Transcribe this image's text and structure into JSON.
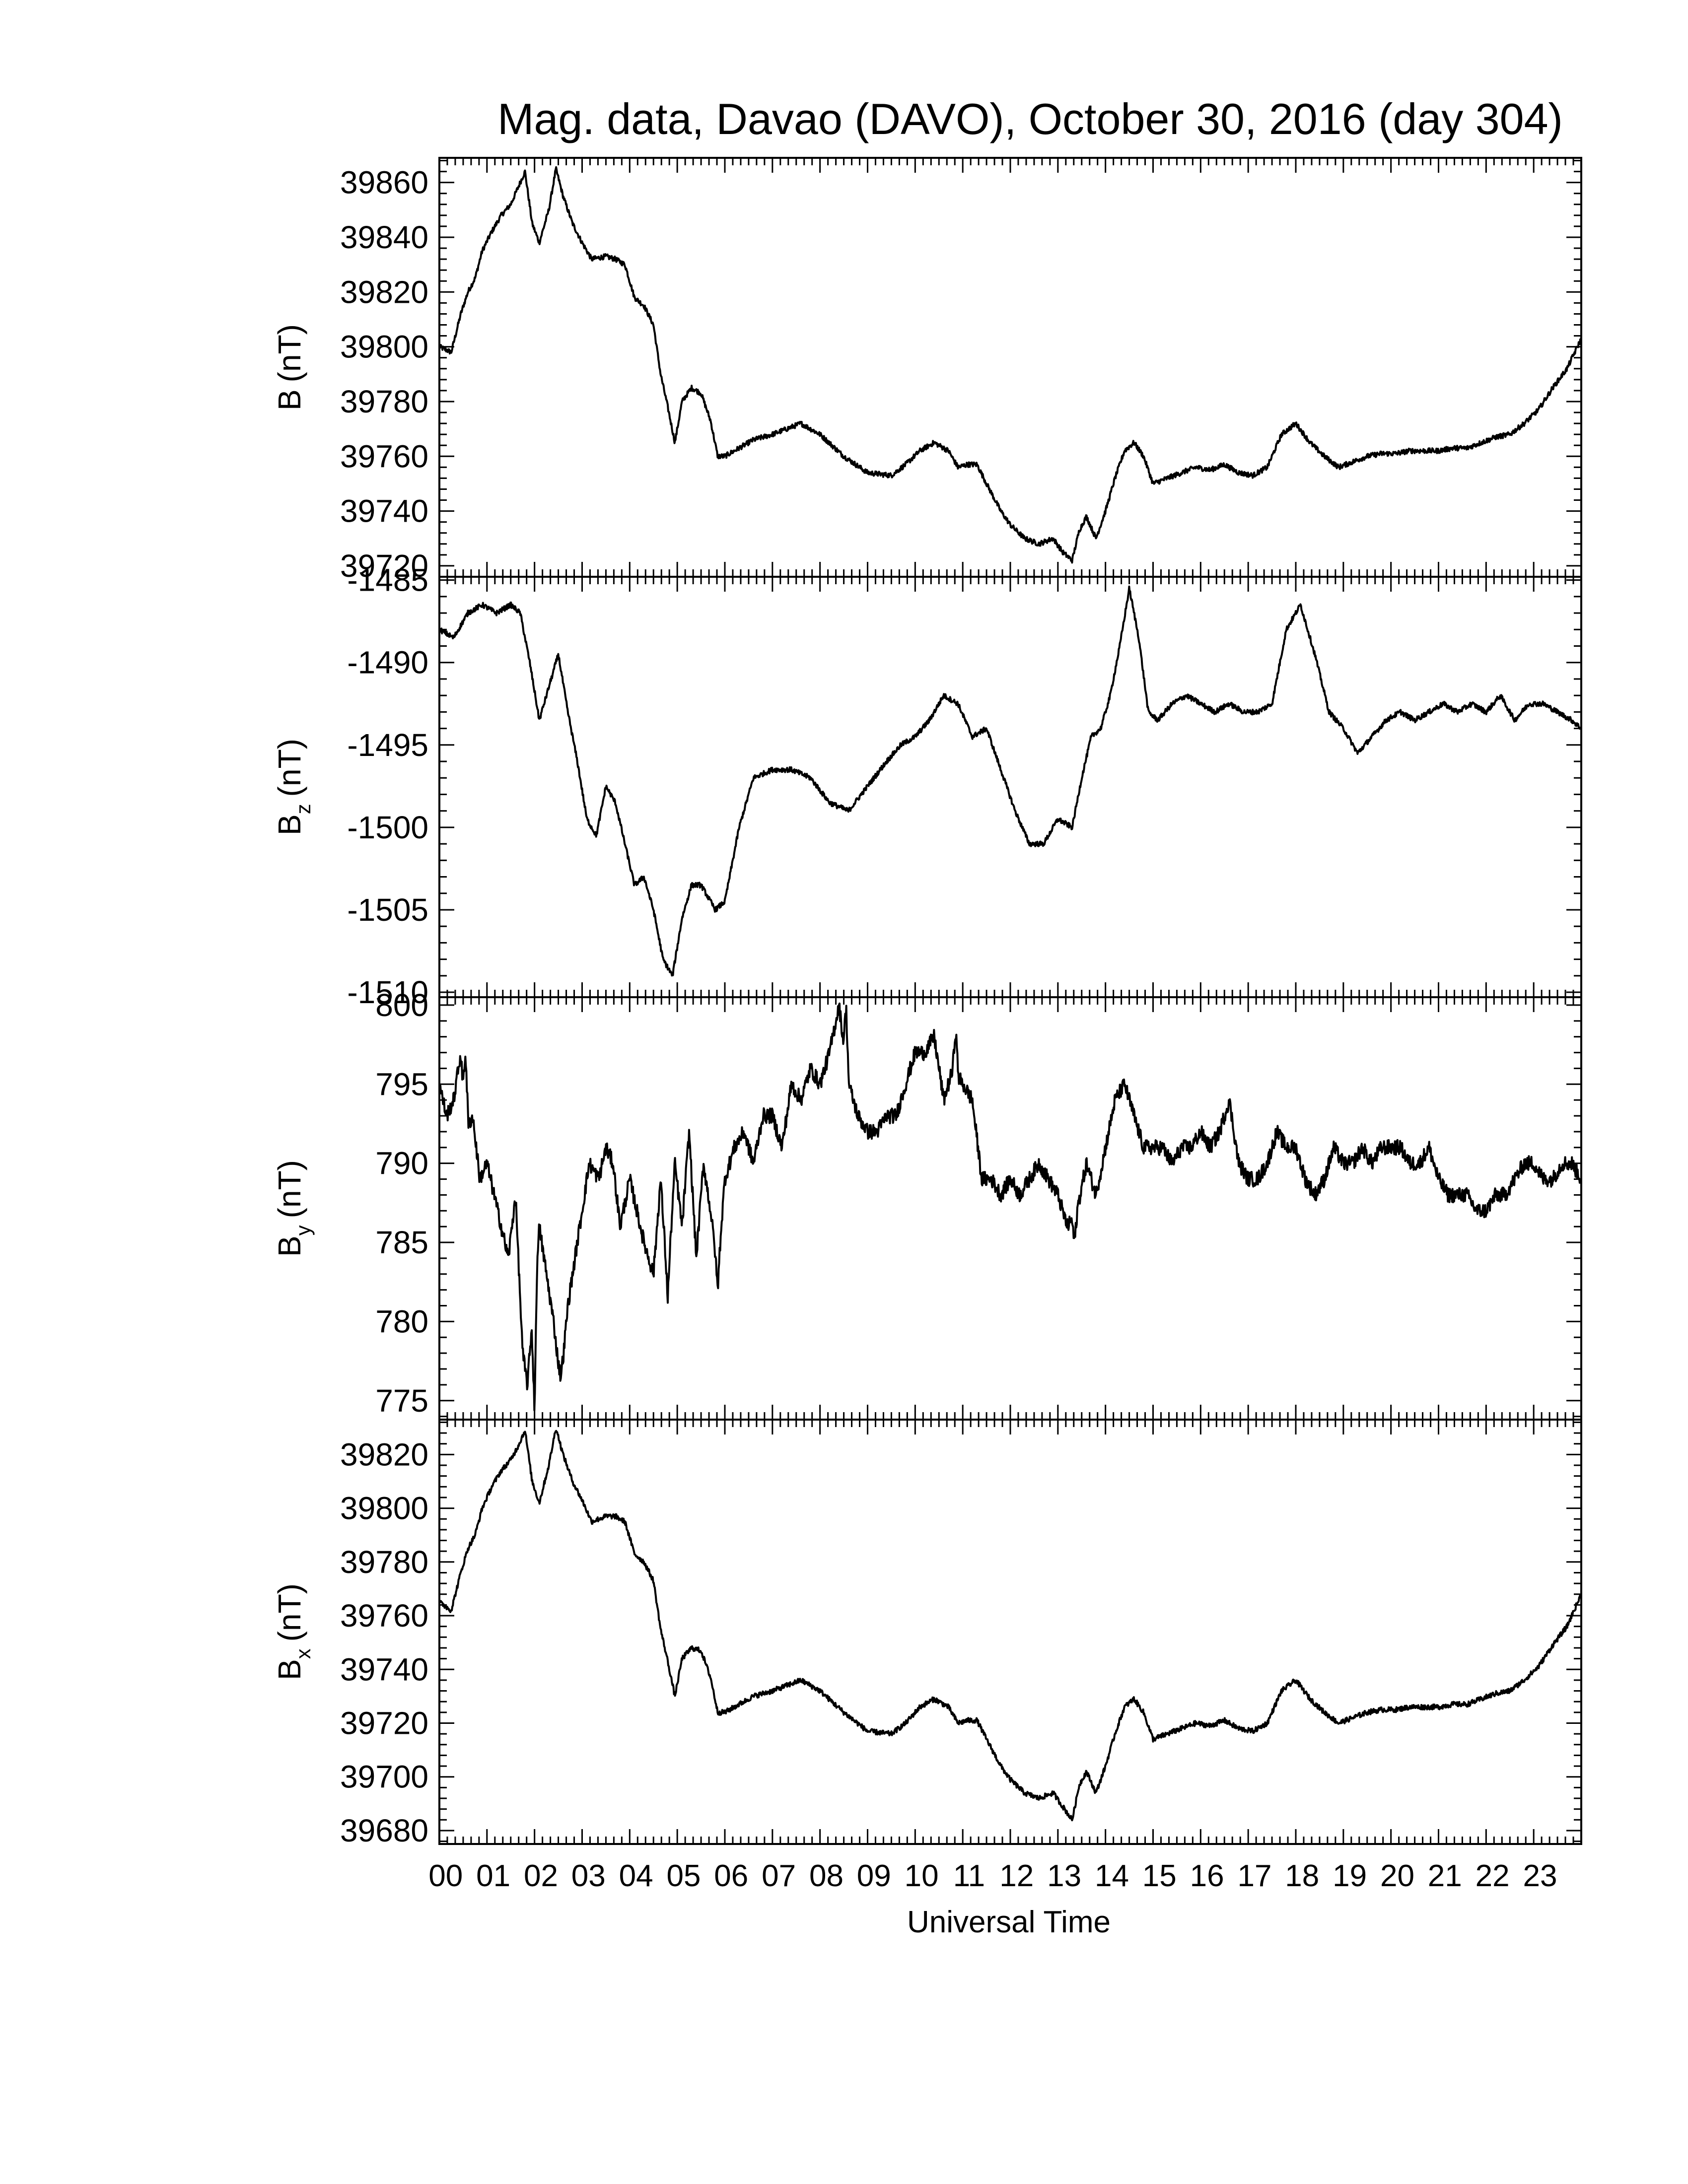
{
  "title": "Mag. data, Davao (DAVO), October 30, 2016 (day 304)",
  "xlabel": "Universal Time",
  "x_ticks": [
    "00",
    "01",
    "02",
    "03",
    "04",
    "05",
    "06",
    "07",
    "08",
    "09",
    "10",
    "11",
    "12",
    "13",
    "14",
    "15",
    "16",
    "17",
    "18",
    "19",
    "20",
    "21",
    "22",
    "23"
  ],
  "colors": {
    "line": "#000000",
    "axes": "#000000",
    "background": "#ffffff"
  },
  "chart_data": [
    {
      "type": "line",
      "ylabel": "B (nT)",
      "ylabel_main": "B",
      "ylabel_sub": "",
      "ylabel_unit": "(nT)",
      "ylim": [
        39716,
        39869
      ],
      "yticks": [
        39720,
        39740,
        39760,
        39780,
        39800,
        39820,
        39840,
        39860
      ],
      "ytick_labels": [
        "39720",
        "39740",
        "39760",
        "39780",
        "39800",
        "39820",
        "39840",
        "39860"
      ],
      "xlim": [
        0,
        24
      ],
      "x": [
        0.0,
        0.25,
        0.45,
        0.6,
        0.75,
        0.9,
        1.1,
        1.3,
        1.5,
        1.65,
        1.8,
        1.95,
        2.1,
        2.3,
        2.45,
        2.6,
        2.8,
        3.0,
        3.2,
        3.5,
        3.7,
        3.9,
        4.1,
        4.3,
        4.5,
        4.65,
        4.8,
        4.95,
        5.1,
        5.3,
        5.5,
        5.7,
        5.85,
        6.0,
        6.3,
        6.6,
        7.0,
        7.3,
        7.6,
        8.0,
        8.5,
        9.0,
        9.5,
        9.8,
        10.1,
        10.4,
        10.7,
        10.9,
        11.1,
        11.3,
        11.5,
        11.8,
        12.0,
        12.3,
        12.6,
        12.9,
        13.1,
        13.3,
        13.45,
        13.6,
        13.8,
        14.0,
        14.2,
        14.4,
        14.6,
        14.8,
        15.0,
        15.3,
        15.6,
        15.9,
        16.2,
        16.5,
        16.8,
        17.1,
        17.4,
        17.7,
        18.0,
        18.3,
        18.6,
        18.9,
        19.2,
        19.5,
        19.8,
        20.1,
        20.4,
        20.7,
        21.0,
        21.3,
        21.6,
        21.9,
        22.2,
        22.5,
        22.8,
        23.1,
        23.4,
        23.7,
        24.0
      ],
      "y": [
        39800,
        39798,
        39812,
        39820,
        39825,
        39835,
        39842,
        39848,
        39852,
        39858,
        39864,
        39845,
        39838,
        39850,
        39865,
        39855,
        39845,
        39838,
        39832,
        39833,
        39832,
        39830,
        39818,
        39815,
        39808,
        39790,
        39778,
        39765,
        39780,
        39785,
        39783,
        39773,
        39760,
        39760,
        39763,
        39766,
        39768,
        39770,
        39772,
        39768,
        39760,
        39754,
        39753,
        39757,
        39762,
        39765,
        39762,
        39756,
        39757,
        39757,
        39750,
        39740,
        39735,
        39730,
        39728,
        39730,
        39725,
        39722,
        39733,
        39738,
        39730,
        39740,
        39752,
        39762,
        39765,
        39760,
        39750,
        39752,
        39754,
        39756,
        39755,
        39757,
        39754,
        39753,
        39756,
        39768,
        39772,
        39765,
        39760,
        39756,
        39758,
        39760,
        39761,
        39761,
        39762,
        39762,
        39762,
        39763,
        39763,
        39765,
        39767,
        39768,
        39772,
        39777,
        39785,
        39792,
        39803
      ]
    },
    {
      "type": "line",
      "ylabel": "Bz (nT)",
      "ylabel_main": "B",
      "ylabel_sub": "z",
      "ylabel_unit": "(nT)",
      "ylim": [
        -1510.3,
        -1484.8
      ],
      "yticks": [
        -1510,
        -1505,
        -1500,
        -1495,
        -1490,
        -1485
      ],
      "ytick_labels": [
        "-1510",
        "-1505",
        "-1500",
        "-1495",
        "-1490",
        "-1485"
      ],
      "xlim": [
        0,
        24
      ],
      "x": [
        0.0,
        0.3,
        0.6,
        0.9,
        1.2,
        1.5,
        1.7,
        1.9,
        2.1,
        2.3,
        2.5,
        2.7,
        2.9,
        3.1,
        3.3,
        3.5,
        3.7,
        3.9,
        4.1,
        4.3,
        4.5,
        4.7,
        4.9,
        5.1,
        5.3,
        5.5,
        5.8,
        6.0,
        6.3,
        6.6,
        7.0,
        7.4,
        7.8,
        8.2,
        8.6,
        9.0,
        9.4,
        9.7,
        10.0,
        10.3,
        10.6,
        10.9,
        11.2,
        11.5,
        11.8,
        12.1,
        12.4,
        12.7,
        13.0,
        13.3,
        13.5,
        13.7,
        13.9,
        14.1,
        14.3,
        14.5,
        14.7,
        14.9,
        15.1,
        15.4,
        15.7,
        16.0,
        16.3,
        16.6,
        16.9,
        17.2,
        17.5,
        17.8,
        18.1,
        18.4,
        18.7,
        19.0,
        19.3,
        19.6,
        19.9,
        20.2,
        20.5,
        20.8,
        21.1,
        21.4,
        21.7,
        22.0,
        22.3,
        22.6,
        22.9,
        23.2,
        23.5,
        23.8,
        24.0
      ],
      "y": [
        -1488.0,
        -1488.5,
        -1487.0,
        -1486.5,
        -1487.0,
        -1486.5,
        -1487.0,
        -1490.0,
        -1493.5,
        -1491.5,
        -1489.5,
        -1493.0,
        -1496.0,
        -1499.5,
        -1500.5,
        -1497.5,
        -1498.5,
        -1501.0,
        -1503.5,
        -1503.0,
        -1505.0,
        -1508.0,
        -1509.0,
        -1505.5,
        -1503.5,
        -1503.5,
        -1505.0,
        -1504.5,
        -1500.0,
        -1497.0,
        -1496.5,
        -1496.5,
        -1497.0,
        -1498.5,
        -1499.0,
        -1497.5,
        -1496.0,
        -1495.0,
        -1494.5,
        -1493.5,
        -1492.0,
        -1492.5,
        -1494.5,
        -1494.0,
        -1496.5,
        -1499.0,
        -1501.0,
        -1501.0,
        -1499.5,
        -1500.0,
        -1497.0,
        -1494.5,
        -1494.0,
        -1492.0,
        -1489.0,
        -1485.5,
        -1488.5,
        -1493.0,
        -1493.5,
        -1492.5,
        -1492.0,
        -1492.5,
        -1493.0,
        -1492.5,
        -1493.0,
        -1493.0,
        -1492.5,
        -1488.0,
        -1486.5,
        -1489.5,
        -1493.0,
        -1494.0,
        -1495.5,
        -1494.5,
        -1493.5,
        -1493.0,
        -1493.5,
        -1493.0,
        -1492.5,
        -1493.0,
        -1492.5,
        -1493.0,
        -1492.0,
        -1493.5,
        -1492.5,
        -1492.5,
        -1493.0,
        -1493.5,
        -1494.0
      ]
    },
    {
      "type": "line",
      "ylabel": "By (nT)",
      "ylabel_main": "B",
      "ylabel_sub": "y",
      "ylabel_unit": "(nT)",
      "ylim": [
        773.8,
        800.5
      ],
      "yticks": [
        775,
        780,
        785,
        790,
        795,
        800
      ],
      "ytick_labels": [
        "775",
        "780",
        "785",
        "790",
        "795",
        "800"
      ],
      "xlim": [
        0,
        24
      ],
      "x": [
        0.0,
        0.15,
        0.3,
        0.45,
        0.55,
        0.7,
        0.85,
        1.0,
        1.15,
        1.3,
        1.45,
        1.6,
        1.75,
        1.85,
        2.0,
        2.1,
        2.25,
        2.4,
        2.55,
        2.7,
        2.85,
        3.0,
        3.15,
        3.35,
        3.5,
        3.65,
        3.8,
        4.0,
        4.15,
        4.3,
        4.5,
        4.65,
        4.8,
        4.95,
        5.1,
        5.25,
        5.4,
        5.55,
        5.7,
        5.85,
        6.0,
        6.2,
        6.4,
        6.6,
        6.8,
        7.0,
        7.2,
        7.4,
        7.6,
        7.8,
        8.0,
        8.2,
        8.4,
        8.6,
        8.8,
        9.0,
        9.2,
        9.4,
        9.6,
        9.8,
        10.0,
        10.2,
        10.4,
        10.6,
        10.8,
        11.0,
        11.2,
        11.4,
        11.6,
        11.8,
        12.0,
        12.2,
        12.4,
        12.6,
        12.8,
        13.0,
        13.2,
        13.4,
        13.6,
        13.8,
        14.0,
        14.2,
        14.4,
        14.6,
        14.8,
        15.0,
        15.2,
        15.4,
        15.6,
        15.8,
        16.0,
        16.2,
        16.4,
        16.6,
        16.8,
        17.0,
        17.2,
        17.4,
        17.6,
        17.8,
        18.0,
        18.2,
        18.4,
        18.6,
        18.8,
        19.0,
        19.2,
        19.4,
        19.6,
        19.8,
        20.0,
        20.2,
        20.4,
        20.6,
        20.8,
        21.0,
        21.2,
        21.4,
        21.6,
        21.8,
        22.0,
        22.2,
        22.4,
        22.6,
        22.8,
        23.0,
        23.2,
        23.4,
        23.6,
        23.8,
        24.0
      ],
      "y": [
        795,
        793,
        794,
        797,
        792,
        793,
        789,
        790,
        788,
        786,
        784,
        788,
        778,
        776,
        782,
        786,
        783,
        780,
        776,
        781,
        784,
        787,
        790,
        789,
        791,
        790,
        786,
        789,
        787,
        785,
        783,
        789,
        782,
        790,
        786,
        792,
        784,
        790,
        787,
        783,
        789,
        791,
        792,
        790,
        793,
        793,
        791,
        795,
        794,
        796,
        795,
        797,
        800,
        795,
        793,
        792,
        792,
        793,
        793,
        795,
        797,
        797,
        798,
        794,
        796,
        795,
        794,
        789,
        789,
        788,
        789,
        788,
        789,
        790,
        789,
        788,
        786,
        787,
        790,
        788,
        791,
        794,
        795,
        793,
        791,
        791,
        791,
        790,
        791,
        791,
        792,
        791,
        792,
        794,
        790,
        789,
        789,
        790,
        792,
        791,
        791,
        789,
        788,
        789,
        791,
        790,
        790,
        791,
        790,
        791,
        791,
        791,
        790,
        790,
        791,
        789,
        788,
        788,
        788,
        787,
        787,
        788,
        788,
        789,
        790,
        790,
        789,
        789,
        790,
        790,
        789
      ],
      "spikes": [
        [
          2.0,
          774.5
        ],
        [
          2.55,
          776.5
        ],
        [
          0.55,
          797.0
        ],
        [
          5.85,
          782.0
        ],
        [
          4.8,
          781.5
        ],
        [
          8.55,
          799.8
        ],
        [
          10.85,
          798.5
        ],
        [
          13.35,
          785.0
        ]
      ]
    },
    {
      "type": "line",
      "ylabel": "Bx (nT)",
      "ylabel_main": "B",
      "ylabel_sub": "x",
      "ylabel_unit": "(nT)",
      "ylim": [
        39675,
        39833
      ],
      "yticks": [
        39680,
        39700,
        39720,
        39740,
        39760,
        39780,
        39800,
        39820
      ],
      "ytick_labels": [
        "39680",
        "39700",
        "39720",
        "39740",
        "39760",
        "39780",
        "39800",
        "39820"
      ],
      "xlim": [
        0,
        24
      ],
      "x": [
        0.0,
        0.25,
        0.45,
        0.6,
        0.75,
        0.9,
        1.1,
        1.3,
        1.5,
        1.65,
        1.8,
        1.95,
        2.1,
        2.3,
        2.45,
        2.6,
        2.8,
        3.0,
        3.2,
        3.5,
        3.7,
        3.9,
        4.1,
        4.3,
        4.5,
        4.65,
        4.8,
        4.95,
        5.1,
        5.3,
        5.5,
        5.7,
        5.85,
        6.0,
        6.3,
        6.6,
        7.0,
        7.3,
        7.6,
        8.0,
        8.5,
        9.0,
        9.5,
        9.8,
        10.1,
        10.4,
        10.7,
        10.9,
        11.1,
        11.3,
        11.5,
        11.8,
        12.0,
        12.3,
        12.6,
        12.9,
        13.1,
        13.3,
        13.45,
        13.6,
        13.8,
        14.0,
        14.2,
        14.4,
        14.6,
        14.8,
        15.0,
        15.3,
        15.6,
        15.9,
        16.2,
        16.5,
        16.8,
        17.1,
        17.4,
        17.7,
        18.0,
        18.3,
        18.6,
        18.9,
        19.2,
        19.5,
        19.8,
        20.1,
        20.4,
        20.7,
        21.0,
        21.3,
        21.6,
        21.9,
        22.2,
        22.5,
        22.8,
        23.1,
        23.4,
        23.7,
        24.0
      ],
      "y": [
        39765,
        39762,
        39776,
        39785,
        39790,
        39800,
        39808,
        39814,
        39818,
        39823,
        39829,
        39810,
        39802,
        39816,
        39830,
        39820,
        39810,
        39803,
        39795,
        39797,
        39797,
        39795,
        39783,
        39780,
        39773,
        39755,
        39743,
        39730,
        39744,
        39748,
        39747,
        39737,
        39724,
        39724,
        39727,
        39730,
        39732,
        39734,
        39736,
        39732,
        39724,
        39717,
        39716,
        39720,
        39726,
        39729,
        39726,
        39720,
        39721,
        39721,
        39714,
        39704,
        39699,
        39694,
        39692,
        39694,
        39689,
        39684,
        39697,
        39702,
        39694,
        39704,
        39716,
        39726,
        39729,
        39724,
        39714,
        39716,
        39718,
        39720,
        39719,
        39721,
        39718,
        39717,
        39720,
        39732,
        39736,
        39729,
        39724,
        39720,
        39722,
        39724,
        39725,
        39725,
        39726,
        39726,
        39726,
        39727,
        39727,
        39729,
        39731,
        39732,
        39736,
        39741,
        39749,
        39756,
        39768
      ]
    }
  ]
}
